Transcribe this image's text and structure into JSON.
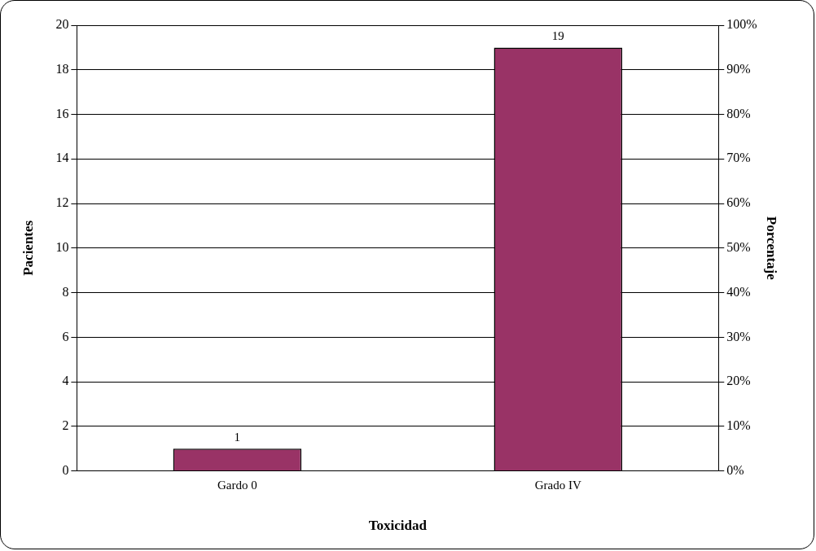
{
  "chart_data": {
    "type": "bar",
    "xlabel": "Toxicidad",
    "ylabel": "Pacientes",
    "y2label": "Porcentaje",
    "categories": [
      "Gardo 0",
      "Grado IV"
    ],
    "values": [
      1,
      19
    ],
    "color": "#993366",
    "ylim": [
      0,
      20
    ],
    "yticks": [
      0,
      2,
      4,
      6,
      8,
      10,
      12,
      14,
      16,
      18,
      20
    ],
    "y2lim": [
      0,
      100
    ],
    "y2ticks": [
      {
        "value": 0,
        "label": "0%"
      },
      {
        "value": 10,
        "label": "10%"
      },
      {
        "value": 20,
        "label": "20%"
      },
      {
        "value": 30,
        "label": "30%"
      },
      {
        "value": 40,
        "label": "40%"
      },
      {
        "value": 50,
        "label": "50%"
      },
      {
        "value": 60,
        "label": "60%"
      },
      {
        "value": 70,
        "label": "70%"
      },
      {
        "value": 80,
        "label": "80%"
      },
      {
        "value": 90,
        "label": "90%"
      },
      {
        "value": 100,
        "label": "100%"
      }
    ],
    "grid": "y",
    "data_labels": true
  }
}
